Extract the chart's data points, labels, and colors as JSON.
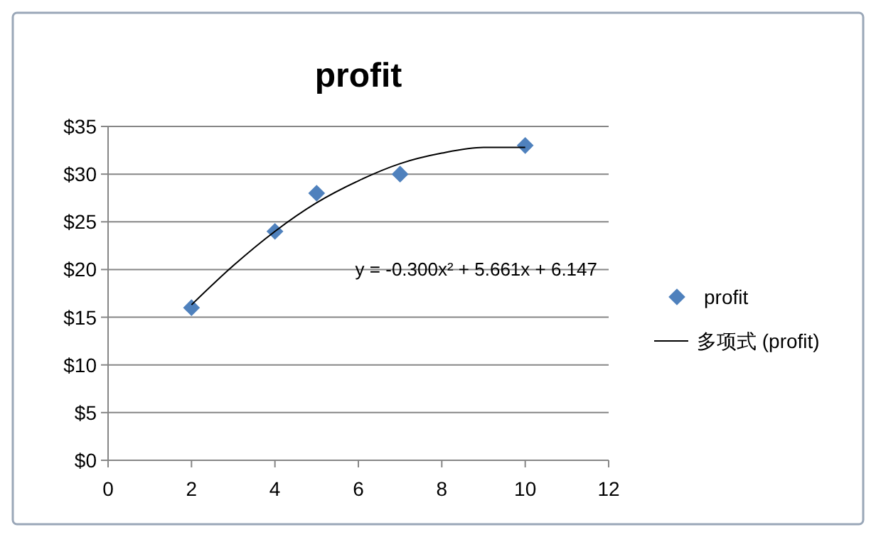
{
  "chart_data": {
    "type": "scatter",
    "title": "profit",
    "xlim": [
      0,
      12
    ],
    "xticks": [
      0,
      2,
      4,
      6,
      8,
      10,
      12
    ],
    "ylim": [
      0,
      35
    ],
    "yticks": [
      {
        "value": 0,
        "label": "$0"
      },
      {
        "value": 5,
        "label": "$5"
      },
      {
        "value": 10,
        "label": "$10"
      },
      {
        "value": 15,
        "label": "$15"
      },
      {
        "value": 20,
        "label": "$20"
      },
      {
        "value": 25,
        "label": "$25"
      },
      {
        "value": 30,
        "label": "$30"
      },
      {
        "value": 35,
        "label": "$35"
      }
    ],
    "grid": "y",
    "legend": "right",
    "marker": "diamond",
    "series": [
      {
        "name": "profit",
        "color": "#4f81bd",
        "x": [
          2,
          4,
          5,
          7,
          10
        ],
        "values": [
          16,
          24,
          28,
          30,
          33
        ]
      },
      {
        "name": "多项式 (profit)",
        "type": "line",
        "color": "#000000",
        "line_style": "solid",
        "marker": "none",
        "x": [
          2,
          3,
          4,
          5,
          6,
          7,
          8,
          9,
          10
        ],
        "values": [
          16.3,
          20.4,
          24.0,
          27.0,
          29.3,
          31.1,
          32.2,
          32.8,
          32.8
        ]
      }
    ],
    "annotations": [
      "y = -0.300x² + 5.661x + 6.147"
    ]
  }
}
